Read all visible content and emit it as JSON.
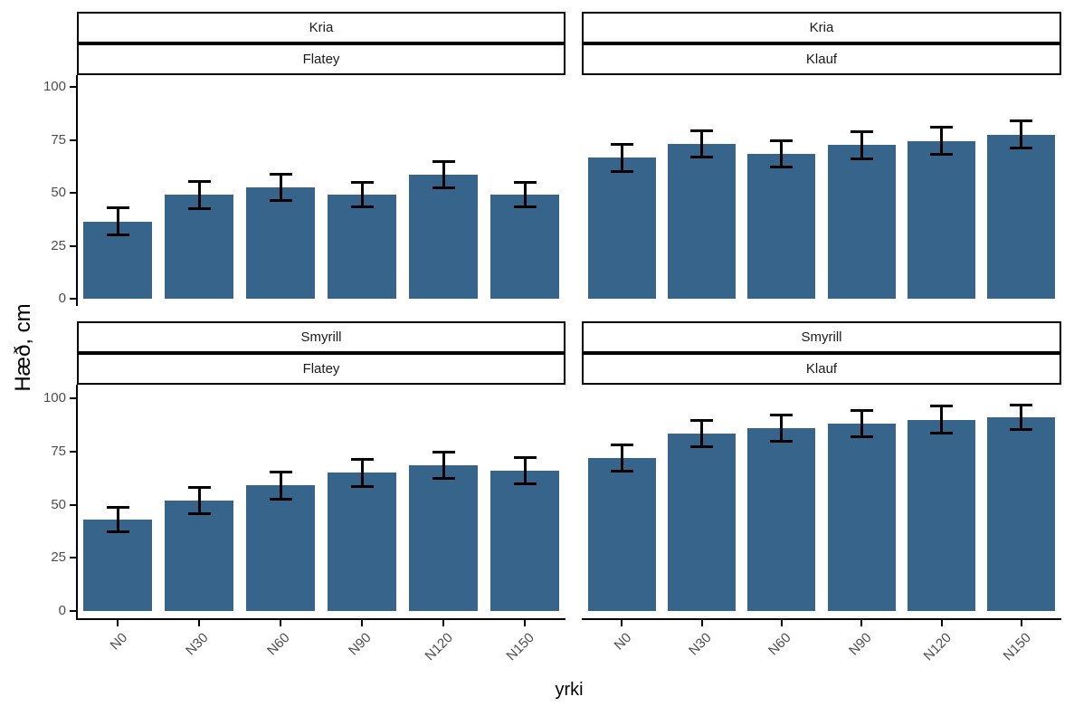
{
  "figure": {
    "background": "#FFFFFF",
    "bar_color": "#36648B",
    "error_bar_color": "#000000",
    "axis_line_color": "#000000",
    "tick_label_color": "#4D4D4D",
    "strip_text_color": "#1A1A1A",
    "strip_border_color": "#000000"
  },
  "chart_data": {
    "type": "bar",
    "title": "",
    "xlabel": "yrki",
    "ylabel": "Hæð, cm",
    "ylim": [
      0,
      100
    ],
    "yticks": [
      0,
      25,
      50,
      75,
      100
    ],
    "grid": false,
    "legend": false,
    "error_bars": true,
    "categories": [
      "N0",
      "N30",
      "N60",
      "N90",
      "N120",
      "N150"
    ],
    "facet_row_labels": [
      "Kria",
      "Smyrill"
    ],
    "facet_col_labels": [
      "Flatey",
      "Klauf"
    ],
    "panels": [
      {
        "row": "Kria",
        "col": "Flatey",
        "values": [
          36.5,
          49,
          52.5,
          49,
          58.5,
          49
        ],
        "errors": [
          6.5,
          6.5,
          6.5,
          6,
          6.5,
          6
        ]
      },
      {
        "row": "Kria",
        "col": "Klauf",
        "values": [
          66.5,
          73,
          68.5,
          72.5,
          74.5,
          77.5
        ],
        "errors": [
          6.5,
          6.5,
          6.5,
          6.5,
          6.5,
          6.5
        ]
      },
      {
        "row": "Smyrill",
        "col": "Flatey",
        "values": [
          43,
          52,
          59,
          65,
          68.5,
          66
        ],
        "errors": [
          6,
          6.5,
          6.5,
          6.5,
          6.5,
          6.5
        ]
      },
      {
        "row": "Smyrill",
        "col": "Klauf",
        "values": [
          72,
          83.5,
          86,
          88,
          90,
          91
        ],
        "errors": [
          6.5,
          6.5,
          6.5,
          6.5,
          6.5,
          6
        ]
      }
    ]
  }
}
